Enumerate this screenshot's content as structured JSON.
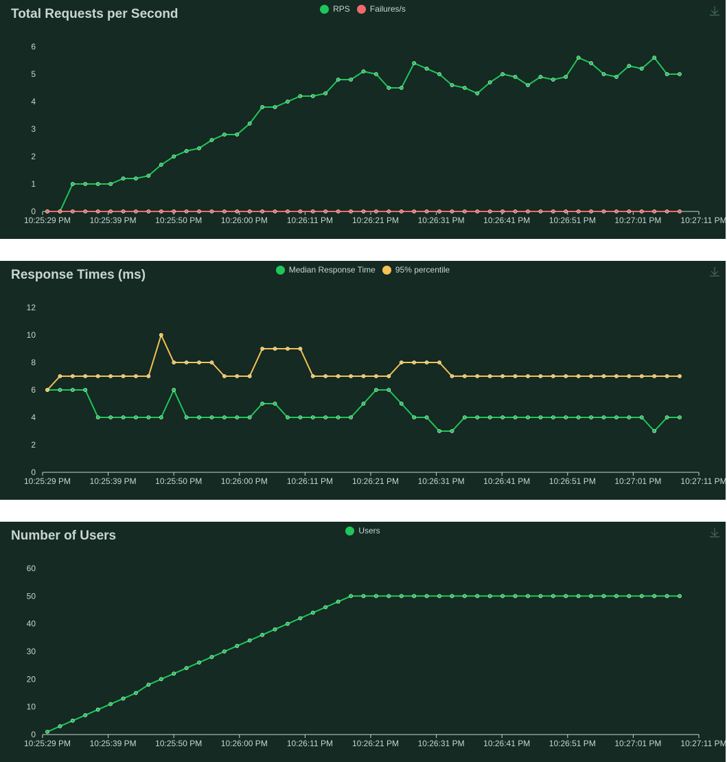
{
  "x_labels": [
    "10:25:29 PM",
    "10:25:39 PM",
    "10:25:50 PM",
    "10:26:00 PM",
    "10:26:11 PM",
    "10:26:21 PM",
    "10:26:31 PM",
    "10:26:41 PM",
    "10:26:51 PM",
    "10:27:01 PM",
    "10:27:11 PM"
  ],
  "colors": {
    "panel_bg": "#142a22",
    "green": "#1fc65a",
    "red": "#ef6b6b",
    "yellow": "#f7c154",
    "text": "#c9d6d0"
  },
  "download_icon": "download-icon",
  "chart_data": [
    {
      "type": "line",
      "title": "Total Requests per Second",
      "ylim": [
        0,
        6
      ],
      "yticks": [
        0,
        1,
        2,
        3,
        4,
        5,
        6
      ],
      "series": [
        {
          "name": "RPS",
          "color": "#1fc65a",
          "values": [
            0,
            0,
            1,
            1,
            1,
            1,
            1.2,
            1.2,
            1.3,
            1.7,
            2,
            2.2,
            2.3,
            2.6,
            2.8,
            2.8,
            3.2,
            3.8,
            3.8,
            4,
            4.2,
            4.2,
            4.3,
            4.8,
            4.8,
            5.1,
            5,
            4.5,
            4.5,
            5.4,
            5.2,
            5,
            4.6,
            4.5,
            4.3,
            4.7,
            5,
            4.9,
            4.6,
            4.9,
            4.8,
            4.9,
            5.6,
            5.4,
            5,
            4.9,
            5.3,
            5.2,
            5.6,
            5,
            5
          ]
        },
        {
          "name": "Failures/s",
          "color": "#ef6b6b",
          "values": [
            0,
            0,
            0,
            0,
            0,
            0,
            0,
            0,
            0,
            0,
            0,
            0,
            0,
            0,
            0,
            0,
            0,
            0,
            0,
            0,
            0,
            0,
            0,
            0,
            0,
            0,
            0,
            0,
            0,
            0,
            0,
            0,
            0,
            0,
            0,
            0,
            0,
            0,
            0,
            0,
            0,
            0,
            0,
            0,
            0,
            0,
            0,
            0,
            0,
            0,
            0
          ]
        }
      ]
    },
    {
      "type": "line",
      "title": "Response Times (ms)",
      "ylim": [
        0,
        12
      ],
      "yticks": [
        0,
        2,
        4,
        6,
        8,
        10,
        12
      ],
      "series": [
        {
          "name": "Median Response Time",
          "color": "#1fc65a",
          "values": [
            6,
            6,
            6,
            6,
            4,
            4,
            4,
            4,
            4,
            4,
            6,
            4,
            4,
            4,
            4,
            4,
            4,
            5,
            5,
            4,
            4,
            4,
            4,
            4,
            4,
            5,
            6,
            6,
            5,
            4,
            4,
            3,
            3,
            4,
            4,
            4,
            4,
            4,
            4,
            4,
            4,
            4,
            4,
            4,
            4,
            4,
            4,
            4,
            3,
            4,
            4
          ]
        },
        {
          "name": "95% percentile",
          "color": "#f7c154",
          "values": [
            6,
            7,
            7,
            7,
            7,
            7,
            7,
            7,
            7,
            10,
            8,
            8,
            8,
            8,
            7,
            7,
            7,
            9,
            9,
            9,
            9,
            7,
            7,
            7,
            7,
            7,
            7,
            7,
            8,
            8,
            8,
            8,
            7,
            7,
            7,
            7,
            7,
            7,
            7,
            7,
            7,
            7,
            7,
            7,
            7,
            7,
            7,
            7,
            7,
            7,
            7
          ]
        }
      ]
    },
    {
      "type": "line",
      "title": "Number of Users",
      "ylim": [
        0,
        60
      ],
      "yticks": [
        0,
        10,
        20,
        30,
        40,
        50,
        60
      ],
      "series": [
        {
          "name": "Users",
          "color": "#1fc65a",
          "values": [
            1,
            3,
            5,
            7,
            9,
            11,
            13,
            15,
            18,
            20,
            22,
            24,
            26,
            28,
            30,
            32,
            34,
            36,
            38,
            40,
            42,
            44,
            46,
            48,
            50,
            50,
            50,
            50,
            50,
            50,
            50,
            50,
            50,
            50,
            50,
            50,
            50,
            50,
            50,
            50,
            50,
            50,
            50,
            50,
            50,
            50,
            50,
            50,
            50,
            50,
            50
          ]
        }
      ]
    }
  ]
}
